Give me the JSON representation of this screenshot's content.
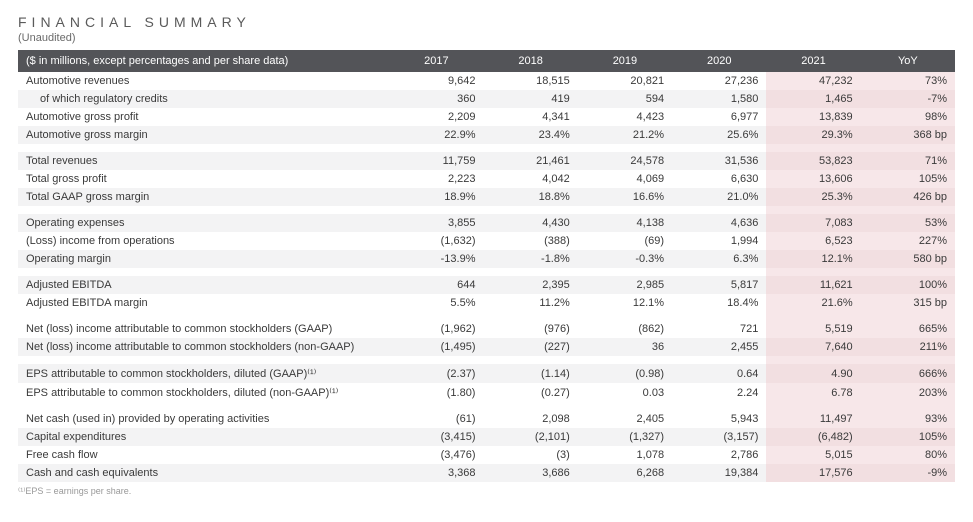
{
  "title": "FINANCIAL SUMMARY",
  "subtitle": "(Unaudited)",
  "header_label": "($ in millions, except percentages and per share data)",
  "columns": [
    "2017",
    "2018",
    "2019",
    "2020",
    "2021",
    "YoY"
  ],
  "highlight_cols": [
    4,
    5
  ],
  "colors": {
    "header_bg": "#535458",
    "header_text": "#ffffff",
    "stripe_bg": "#f3f3f4",
    "highlight_bg": "#f7e7e9",
    "highlight_stripe_bg": "#f2dfe1",
    "body_text": "#3a3a3a",
    "footnote_text": "#999999"
  },
  "groups": [
    {
      "rows": [
        {
          "label": "Automotive revenues",
          "values": [
            "9,642",
            "18,515",
            "20,821",
            "27,236",
            "47,232",
            "73%"
          ]
        },
        {
          "label": "of which regulatory credits",
          "indent": true,
          "values": [
            "360",
            "419",
            "594",
            "1,580",
            "1,465",
            "-7%"
          ]
        },
        {
          "label": "Automotive gross profit",
          "values": [
            "2,209",
            "4,341",
            "4,423",
            "6,977",
            "13,839",
            "98%"
          ]
        },
        {
          "label": "Automotive gross margin",
          "values": [
            "22.9%",
            "23.4%",
            "21.2%",
            "25.6%",
            "29.3%",
            "368 bp"
          ]
        }
      ]
    },
    {
      "rows": [
        {
          "label": "Total revenues",
          "values": [
            "11,759",
            "21,461",
            "24,578",
            "31,536",
            "53,823",
            "71%"
          ]
        },
        {
          "label": "Total gross profit",
          "values": [
            "2,223",
            "4,042",
            "4,069",
            "6,630",
            "13,606",
            "105%"
          ]
        },
        {
          "label": "Total GAAP gross margin",
          "values": [
            "18.9%",
            "18.8%",
            "16.6%",
            "21.0%",
            "25.3%",
            "426 bp"
          ]
        }
      ]
    },
    {
      "rows": [
        {
          "label": "Operating expenses",
          "values": [
            "3,855",
            "4,430",
            "4,138",
            "4,636",
            "7,083",
            "53%"
          ]
        },
        {
          "label": "(Loss) income from operations",
          "values": [
            "(1,632)",
            "(388)",
            "(69)",
            "1,994",
            "6,523",
            "227%"
          ]
        },
        {
          "label": "Operating margin",
          "values": [
            "-13.9%",
            "-1.8%",
            "-0.3%",
            "6.3%",
            "12.1%",
            "580 bp"
          ]
        }
      ]
    },
    {
      "rows": [
        {
          "label": "Adjusted EBITDA",
          "values": [
            "644",
            "2,395",
            "2,985",
            "5,817",
            "11,621",
            "100%"
          ]
        },
        {
          "label": "Adjusted EBITDA margin",
          "values": [
            "5.5%",
            "11.2%",
            "12.1%",
            "18.4%",
            "21.6%",
            "315 bp"
          ]
        }
      ]
    },
    {
      "rows": [
        {
          "label": "Net (loss) income attributable to common stockholders (GAAP)",
          "values": [
            "(1,962)",
            "(976)",
            "(862)",
            "721",
            "5,519",
            "665%"
          ]
        },
        {
          "label": "Net (loss) income attributable to common stockholders (non-GAAP)",
          "values": [
            "(1,495)",
            "(227)",
            "36",
            "2,455",
            "7,640",
            "211%"
          ]
        }
      ]
    },
    {
      "rows": [
        {
          "label": "EPS attributable to common stockholders, diluted (GAAP)⁽¹⁾",
          "values": [
            "(2.37)",
            "(1.14)",
            "(0.98)",
            "0.64",
            "4.90",
            "666%"
          ]
        },
        {
          "label": "EPS attributable to common stockholders, diluted (non-GAAP)⁽¹⁾",
          "values": [
            "(1.80)",
            "(0.27)",
            "0.03",
            "2.24",
            "6.78",
            "203%"
          ]
        }
      ]
    },
    {
      "rows": [
        {
          "label": "Net cash (used in) provided by operating activities",
          "values": [
            "(61)",
            "2,098",
            "2,405",
            "5,943",
            "11,497",
            "93%"
          ]
        },
        {
          "label": "Capital expenditures",
          "values": [
            "(3,415)",
            "(2,101)",
            "(1,327)",
            "(3,157)",
            "(6,482)",
            "105%"
          ]
        },
        {
          "label": "Free cash flow",
          "values": [
            "(3,476)",
            "(3)",
            "1,078",
            "2,786",
            "5,015",
            "80%"
          ]
        },
        {
          "label": "Cash and cash equivalents",
          "values": [
            "3,368",
            "3,686",
            "6,268",
            "19,384",
            "17,576",
            "-9%"
          ]
        }
      ]
    }
  ],
  "footnote": "⁽¹⁾EPS = earnings per share."
}
